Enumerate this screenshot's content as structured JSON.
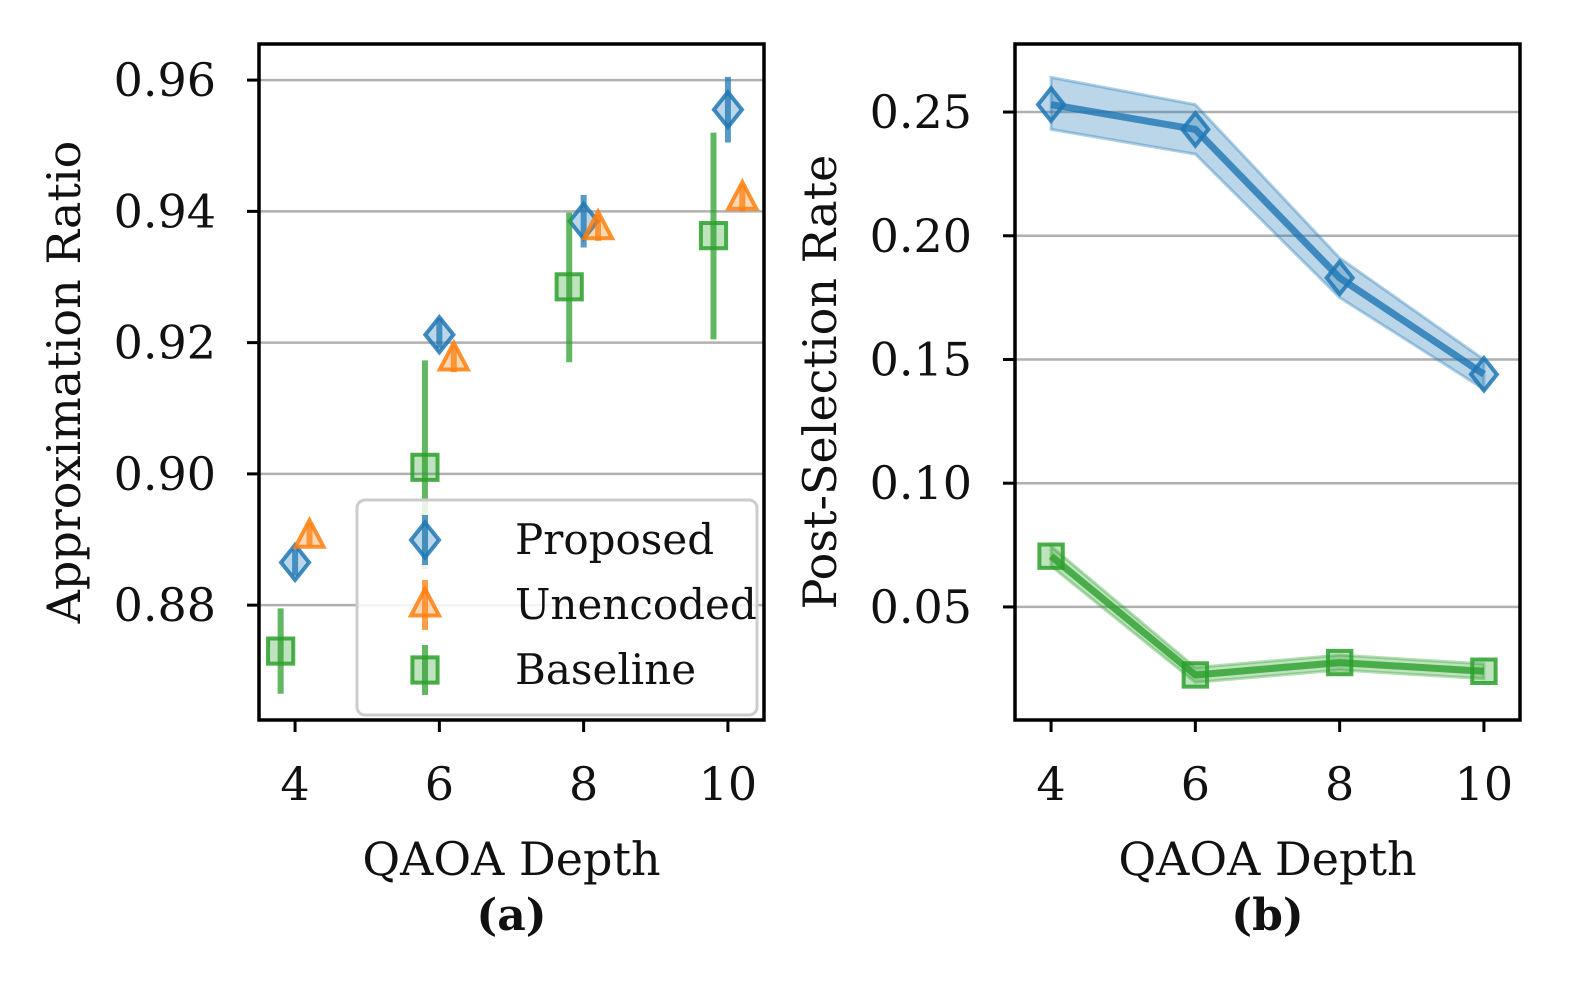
{
  "chart_data": [
    {
      "panel": "a",
      "type": "scatter",
      "xlabel": "QAOA Depth",
      "ylabel": "Approximation Ratio",
      "caption": "(a)",
      "xlim": [
        3.5,
        10.5
      ],
      "ylim": [
        0.8625,
        0.9655
      ],
      "xticks": [
        4,
        6,
        8,
        10
      ],
      "xtick_labels": [
        "4",
        "6",
        "8",
        "10"
      ],
      "yticks": [
        0.88,
        0.9,
        0.92,
        0.94,
        0.96
      ],
      "ytick_labels": [
        "0.88",
        "0.90",
        "0.92",
        "0.94",
        "0.96"
      ],
      "grid": "horizontal",
      "legend_position": "lower-right",
      "series": [
        {
          "name": "Proposed",
          "marker": "diamond",
          "color": "#1f77b4",
          "offset": 0.0,
          "x": [
            4,
            6,
            8,
            10
          ],
          "values": [
            0.8865,
            0.9212,
            0.9385,
            0.9555
          ],
          "err_low": [
            0.8845,
            0.9192,
            0.9345,
            0.9505
          ],
          "err_high": [
            0.8885,
            0.9237,
            0.9425,
            0.9605
          ]
        },
        {
          "name": "Unencoded",
          "marker": "triangle",
          "color": "#ff7f0e",
          "offset": 0.2,
          "x": [
            4,
            6,
            8,
            10
          ],
          "values": [
            0.8905,
            0.9175,
            0.9375,
            0.942
          ],
          "err_low": [
            0.889,
            0.9155,
            0.9355,
            0.94
          ],
          "err_high": [
            0.8925,
            0.9195,
            0.9395,
            0.944
          ]
        },
        {
          "name": "Baseline",
          "marker": "square",
          "color": "#2ca02c",
          "offset": -0.2,
          "x": [
            4,
            6,
            8,
            10
          ],
          "values": [
            0.873,
            0.901,
            0.9285,
            0.9363
          ],
          "err_low": [
            0.8665,
            0.8855,
            0.917,
            0.9205
          ],
          "err_high": [
            0.8795,
            0.9173,
            0.9398,
            0.952
          ]
        }
      ]
    },
    {
      "panel": "b",
      "type": "line",
      "xlabel": "QAOA Depth",
      "ylabel": "Post-Selection Rate",
      "caption": "(b)",
      "xlim": [
        3.5,
        10.5
      ],
      "ylim": [
        0.0043,
        0.2775
      ],
      "xticks": [
        4,
        6,
        8,
        10
      ],
      "xtick_labels": [
        "4",
        "6",
        "8",
        "10"
      ],
      "yticks": [
        0.05,
        0.1,
        0.15,
        0.2,
        0.25
      ],
      "ytick_labels": [
        "0.05",
        "0.10",
        "0.15",
        "0.20",
        "0.25"
      ],
      "grid": "horizontal",
      "series": [
        {
          "name": "Proposed",
          "marker": "diamond",
          "color": "#1f77b4",
          "x": [
            4,
            6,
            8,
            10
          ],
          "values": [
            0.253,
            0.243,
            0.183,
            0.144
          ],
          "band_low": [
            0.243,
            0.233,
            0.175,
            0.138
          ],
          "band_high": [
            0.264,
            0.253,
            0.191,
            0.15
          ]
        },
        {
          "name": "Baseline",
          "marker": "square",
          "color": "#2ca02c",
          "x": [
            4,
            6,
            8,
            10
          ],
          "values": [
            0.0705,
            0.0225,
            0.0275,
            0.024
          ],
          "band_low": [
            0.0665,
            0.0195,
            0.0245,
            0.021
          ],
          "band_high": [
            0.0745,
            0.0255,
            0.0305,
            0.027
          ]
        }
      ]
    }
  ]
}
